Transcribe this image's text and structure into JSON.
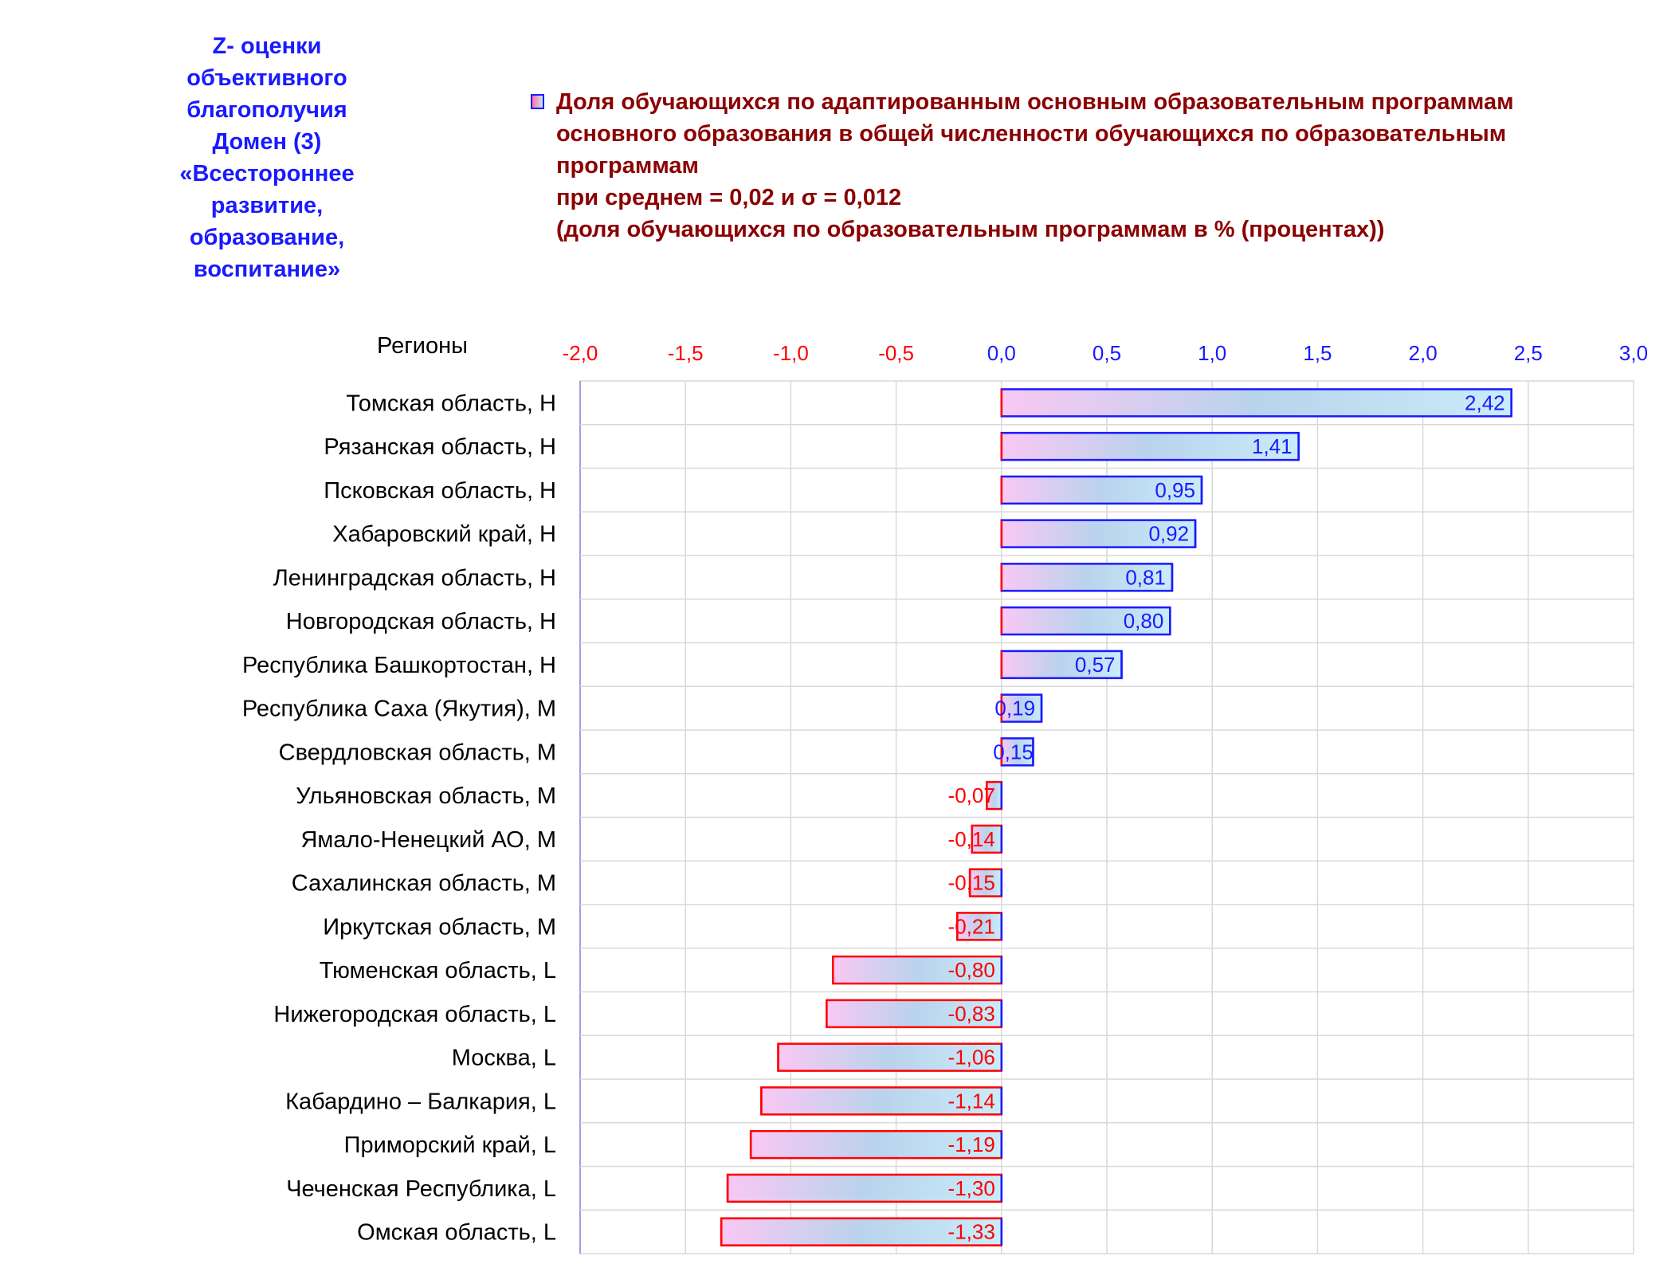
{
  "side_title": "Z- оценки\nобъективного\nблагополучия\nДомен (3)\n«Всестороннее\nразвитие,\nобразование,\nвоспитание»",
  "legend": {
    "text": "Доля обучающихся по адаптированным основным образовательным программам\nосновного образования в общей численности обучающихся по образовательным\nпрограммам\nпри среднем = 0,02  и σ = 0,012\n(доля обучающихся по образовательным программам в % (процентах))"
  },
  "colors": {
    "positive": "#1a1aff",
    "negative": "#ff0000",
    "grid": "#d9d9d9",
    "title_blue": "#1a1aff",
    "legend_text": "#8b0000"
  },
  "chart_data": {
    "type": "bar",
    "orientation": "horizontal",
    "ylabel": "Регионы",
    "xlim": [
      -2.0,
      3.0
    ],
    "x_ticks": [
      "-2,0",
      "-1,5",
      "-1,0",
      "-0,5",
      "0,0",
      "0,5",
      "1,0",
      "1,5",
      "2,0",
      "2,5",
      "3,0"
    ],
    "grid": true,
    "categories": [
      "Томская область,  H",
      "Рязанская область,  H",
      "Псковская область,  H",
      "Хабаровский край,  H",
      "Ленинградская область,  H",
      "Новгородская область,  H",
      "Республика Башкортостан,  H",
      "Республика Саха (Якутия),  M",
      "Свердловская область,  M",
      "Ульяновская область,  M",
      "Ямало-Ненецкий АО,  M",
      "Сахалинская область,  M",
      "Иркутская область,  M",
      "Тюменская область,  L",
      "Нижегородская область,  L",
      "Москва,  L",
      "Кабардино – Балкария,  L",
      "Приморский край,  L",
      "Чеченская Республика,  L",
      "Омская область,  L"
    ],
    "values": [
      2.42,
      1.41,
      0.95,
      0.92,
      0.81,
      0.8,
      0.57,
      0.19,
      0.15,
      -0.07,
      -0.14,
      -0.15,
      -0.21,
      -0.8,
      -0.83,
      -1.06,
      -1.14,
      -1.19,
      -1.3,
      -1.33
    ],
    "value_labels": [
      "2,42",
      "1,41",
      "0,95",
      "0,92",
      "0,81",
      "0,80",
      "0,57",
      "0,19",
      "0,15",
      "-0,07",
      "-0,14",
      "-0,15",
      "-0,21",
      "-0,80",
      "-0,83",
      "-1,06",
      "-1,14",
      "-1,19",
      "-1,30",
      "-1,33"
    ]
  }
}
